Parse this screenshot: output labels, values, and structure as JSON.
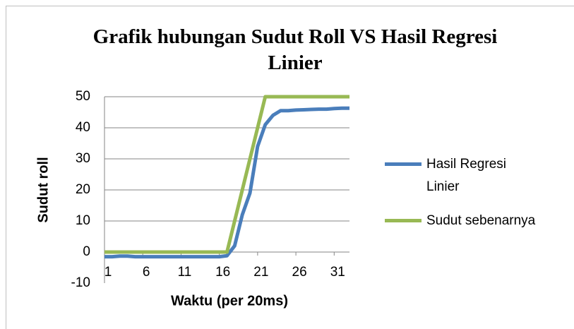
{
  "chart_data": {
    "type": "line",
    "title": "Grafik hubungan Sudut Roll VS Hasil Regresi Linier",
    "x_label": "Waktu (per 20ms)",
    "y_label": "Sudut roll",
    "x": [
      1,
      2,
      3,
      4,
      5,
      6,
      7,
      8,
      9,
      10,
      11,
      12,
      13,
      14,
      15,
      16,
      17,
      18,
      19,
      20,
      21,
      22,
      23,
      24,
      25,
      26,
      27,
      28,
      29,
      30,
      31,
      32,
      33
    ],
    "xlim": [
      1,
      33
    ],
    "xticks": [
      1,
      6,
      11,
      16,
      21,
      26,
      31
    ],
    "ylim": [
      -10,
      50
    ],
    "yticks": [
      -10,
      0,
      10,
      20,
      30,
      40,
      50
    ],
    "grid": true,
    "legend": "right",
    "series": [
      {
        "name": "Hasil Regresi Linier",
        "color": "#4a7ebb",
        "values": [
          -1.5,
          -1.5,
          -1.3,
          -1.3,
          -1.5,
          -1.5,
          -1.5,
          -1.5,
          -1.5,
          -1.5,
          -1.5,
          -1.5,
          -1.5,
          -1.5,
          -1.5,
          -1.5,
          -1.2,
          2,
          12,
          19,
          34,
          41,
          44,
          45.5,
          45.5,
          45.7,
          45.8,
          45.9,
          46,
          46,
          46.2,
          46.3,
          46.3
        ]
      },
      {
        "name": "Sudut sebenarnya",
        "color": "#98b954",
        "values": [
          0,
          0,
          0,
          0,
          0,
          0,
          0,
          0,
          0,
          0,
          0,
          0,
          0,
          0,
          0,
          0,
          0,
          10,
          20,
          30,
          40,
          50,
          50,
          50,
          50,
          50,
          50,
          50,
          50,
          50,
          50,
          50,
          50
        ]
      }
    ]
  }
}
